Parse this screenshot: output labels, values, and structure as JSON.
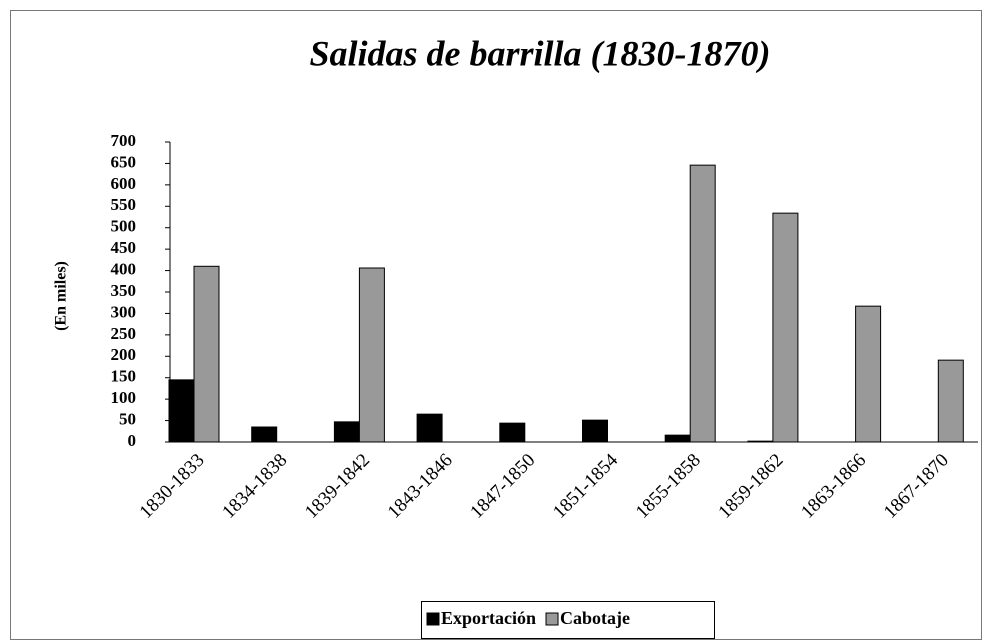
{
  "chart_data": {
    "type": "bar",
    "title": "Salidas de barrilla (1830-1870)",
    "y_label": "(En miles)",
    "categories": [
      "1830-1833",
      "1834-1838",
      "1839-1842",
      "1843-1846",
      "1847-1850",
      "1851-1854",
      "1855-1858",
      "1859-1862",
      "1863-1866",
      "1867-1870"
    ],
    "series": [
      {
        "name": "Exportación",
        "color": "#000000",
        "values": [
          145,
          35,
          47,
          65,
          44,
          51,
          16,
          2,
          0,
          0
        ]
      },
      {
        "name": "Cabotaje",
        "color": "#999999",
        "values": [
          410,
          0,
          406,
          0,
          0,
          0,
          646,
          534,
          317,
          191
        ]
      }
    ],
    "ylim": [
      0,
      700
    ],
    "yticks": [
      0,
      50,
      100,
      150,
      200,
      250,
      300,
      350,
      400,
      450,
      500,
      550,
      600,
      650,
      700
    ],
    "grid": false
  }
}
